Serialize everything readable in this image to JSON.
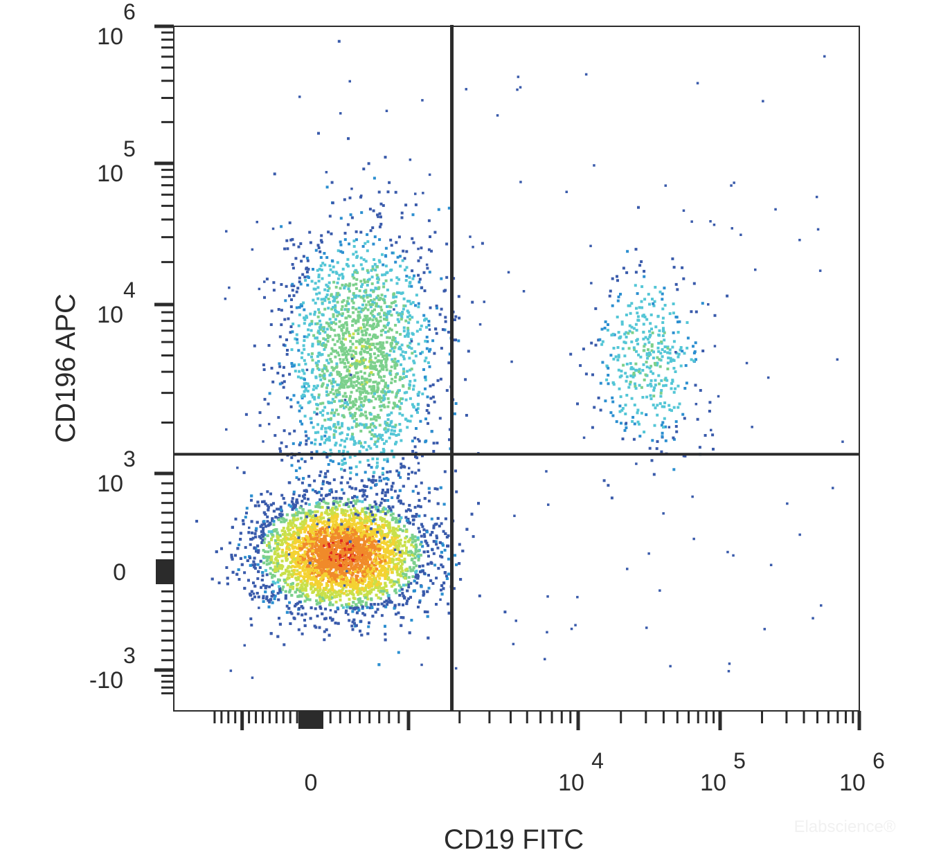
{
  "chart_data": {
    "type": "scatter",
    "subtype": "flow-cytometry density dot plot",
    "title": "",
    "xlabel": "CD19 FITC",
    "ylabel": "CD196 APC",
    "x_scale": "biexponential",
    "y_scale": "biexponential",
    "xlim": [
      -1500,
      1000000
    ],
    "ylim": [
      -1500,
      1500000
    ],
    "x_ticks": [
      {
        "value": 0,
        "base": "0",
        "exp": ""
      },
      {
        "value": 10000,
        "base": "10",
        "exp": "4"
      },
      {
        "value": 100000,
        "base": "10",
        "exp": "5"
      },
      {
        "value": 1000000,
        "base": "10",
        "exp": "6"
      }
    ],
    "y_ticks": [
      {
        "value": -1000,
        "base": "-10",
        "exp": "3"
      },
      {
        "value": 0,
        "base": "0",
        "exp": ""
      },
      {
        "value": 1000,
        "base": "10",
        "exp": "3"
      },
      {
        "value": 10000,
        "base": "10",
        "exp": "4"
      },
      {
        "value": 100000,
        "base": "10",
        "exp": "5"
      },
      {
        "value": 1000000,
        "base": "10",
        "exp": "6"
      }
    ],
    "quadrant_gate": {
      "x": 1800,
      "y": 1300
    },
    "populations": [
      {
        "name_visible": false,
        "center": {
          "x": 300,
          "y": 200
        },
        "relative_size": 0.62,
        "density": "high"
      },
      {
        "name_visible": false,
        "center": {
          "x": 500,
          "y": 5000
        },
        "relative_size": 0.27,
        "density": "medium"
      },
      {
        "name_visible": false,
        "center": {
          "x": 30000,
          "y": 5000
        },
        "relative_size": 0.06,
        "density": "low"
      }
    ],
    "density_colors": [
      "#3a5bab",
      "#2c8fd0",
      "#54c6d6",
      "#7cd08c",
      "#c9e04a",
      "#f4d232",
      "#f08a2a",
      "#e02a1e"
    ],
    "grid": false,
    "legend": "none"
  },
  "watermark": "Elabscience®"
}
